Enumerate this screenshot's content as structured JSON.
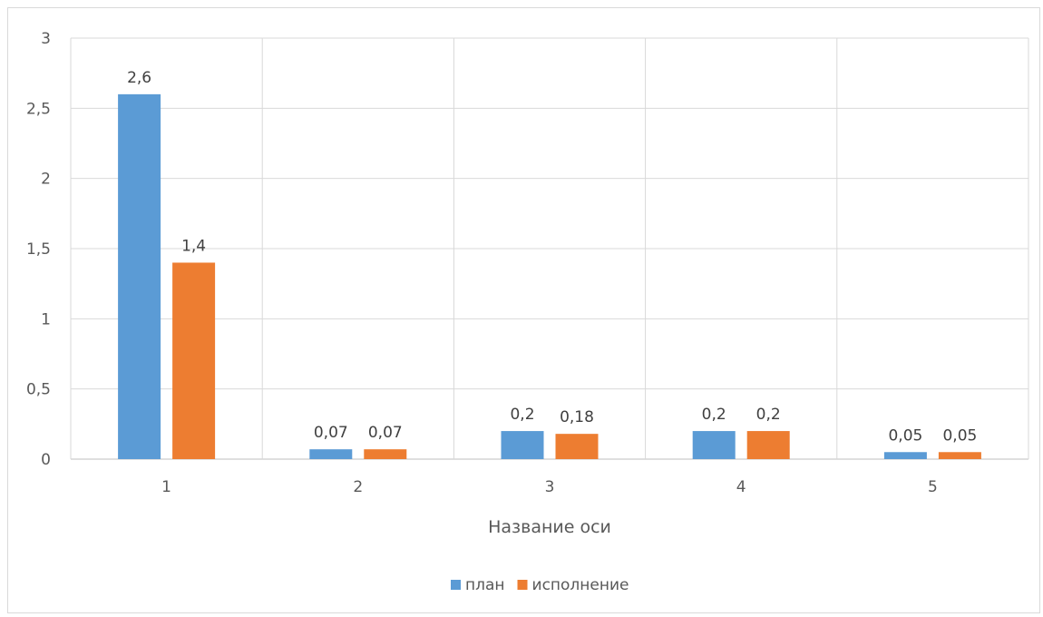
{
  "chart_data": {
    "type": "bar",
    "categories": [
      "1",
      "2",
      "3",
      "4",
      "5"
    ],
    "series": [
      {
        "name": "план",
        "color": "#5b9bd5",
        "values": [
          2.6,
          0.07,
          0.2,
          0.2,
          0.05
        ],
        "labels": [
          "2,6",
          "0,07",
          "0,2",
          "0,2",
          "0,05"
        ]
      },
      {
        "name": "исполнение",
        "color": "#ed7d31",
        "values": [
          1.4,
          0.07,
          0.18,
          0.2,
          0.05
        ],
        "labels": [
          "1,4",
          "0,07",
          "0,18",
          "0,2",
          "0,05"
        ]
      }
    ],
    "title": "",
    "xlabel": "Название оси",
    "ylabel": "",
    "ylim": [
      0,
      3
    ],
    "yticks": [
      0,
      0.5,
      1,
      1.5,
      2,
      2.5,
      3
    ],
    "ytick_labels": [
      "0",
      "0,5",
      "1",
      "1,5",
      "2",
      "2,5",
      "3"
    ],
    "grid": true,
    "legend_position": "bottom"
  }
}
